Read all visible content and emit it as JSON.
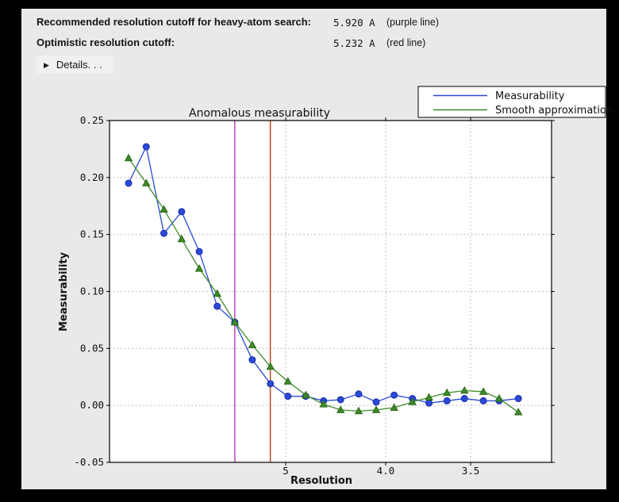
{
  "info": {
    "rows": [
      {
        "label": "Recommended resolution cutoff for heavy-atom search:",
        "value": "5.920 A",
        "note": "(purple line)"
      },
      {
        "label": "Optimistic resolution cutoff:",
        "value": "5.232 A",
        "note": "(red line)"
      }
    ],
    "details_label": "Details. . ."
  },
  "chart_data": {
    "type": "line",
    "title": "Anomalous measurability",
    "xlabel": "Resolution",
    "ylabel": "Measurability",
    "x_axis": {
      "unit": "angstrom",
      "scale": "reciprocal_squared",
      "ticks": [
        {
          "d": 5.0,
          "label": "5"
        },
        {
          "d": 4.0,
          "label": "4.0"
        },
        {
          "d": 3.5,
          "label": "3.5"
        }
      ]
    },
    "ylim": [
      -0.05,
      0.25
    ],
    "yticks": [
      0.25,
      0.2,
      0.15,
      0.1,
      0.05,
      0.0,
      -0.05
    ],
    "grid": true,
    "resolution_d": [
      14.73,
      10.79,
      8.92,
      7.77,
      6.98,
      6.38,
      5.92,
      5.55,
      5.23,
      4.97,
      4.74,
      4.54,
      4.37,
      4.21,
      4.07,
      3.94,
      3.82,
      3.72,
      3.62,
      3.53,
      3.44,
      3.37,
      3.29
    ],
    "series": [
      {
        "name": "Measurability",
        "color": "#2a49d6",
        "edge_color": "#1c2fa6",
        "marker": "circle",
        "values": [
          0.195,
          0.227,
          0.151,
          0.17,
          0.135,
          0.087,
          0.073,
          0.04,
          0.019,
          0.008,
          0.008,
          0.004,
          0.005,
          0.01,
          0.003,
          0.009,
          0.006,
          0.002,
          0.004,
          0.006,
          0.004,
          0.004,
          0.006
        ]
      },
      {
        "name": "Smooth approximation",
        "color": "#3d8b28",
        "edge_color": "#2c681b",
        "marker": "triangle",
        "values": [
          0.217,
          0.195,
          0.172,
          0.146,
          0.12,
          0.098,
          0.073,
          0.053,
          0.034,
          0.021,
          0.009,
          0.001,
          -0.004,
          -0.005,
          -0.004,
          -0.002,
          0.003,
          0.007,
          0.011,
          0.013,
          0.012,
          0.006,
          -0.006
        ]
      }
    ],
    "vlines": [
      {
        "resolution": 5.92,
        "color": "#bb3cbb",
        "name": "purple line"
      },
      {
        "resolution": 5.232,
        "color": "#c33d10",
        "name": "red line"
      }
    ],
    "legend": {
      "position": "top-right",
      "entries": [
        "Measurability",
        "Smooth approximation"
      ]
    },
    "colors": {
      "plot_bg": "#ffffff",
      "figure_bg": "#e9e9e9",
      "grid": "#ababab",
      "frame": "#000000"
    }
  }
}
